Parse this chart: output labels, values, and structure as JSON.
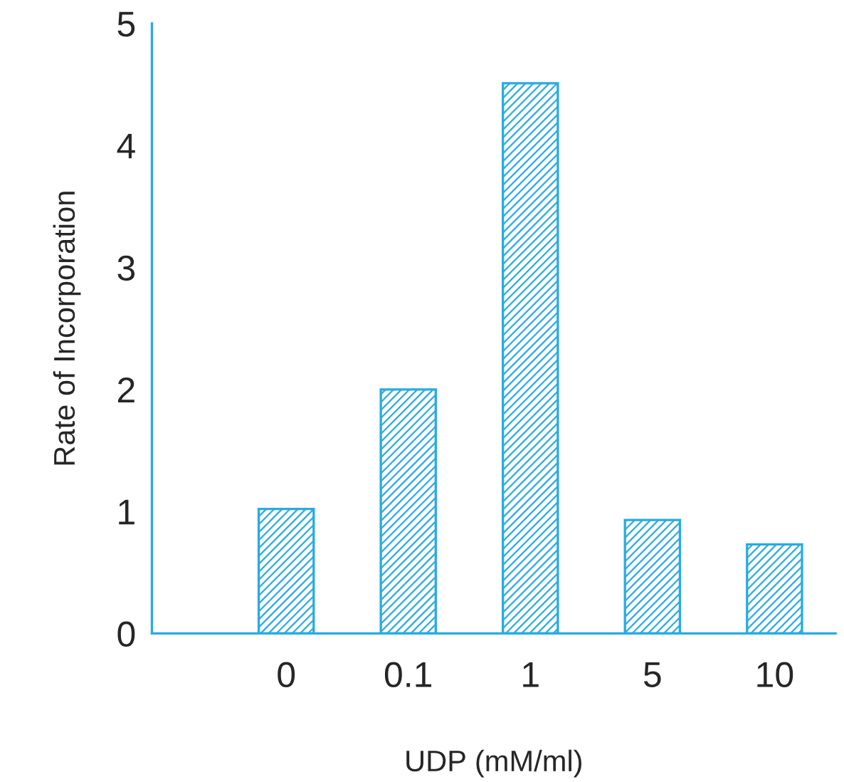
{
  "chart_data": {
    "type": "bar",
    "xlabel": "UDP (mM/ml)",
    "ylabel": "Rate of Incorporation",
    "categories": [
      "0",
      "0.1",
      "1",
      "5",
      "10"
    ],
    "values": [
      1.02,
      2.0,
      4.51,
      0.93,
      0.73
    ],
    "color": "#29abe2",
    "ylim": [
      0,
      5
    ],
    "yticks": [
      0,
      1,
      2,
      3,
      4,
      5
    ],
    "grid": false
  }
}
